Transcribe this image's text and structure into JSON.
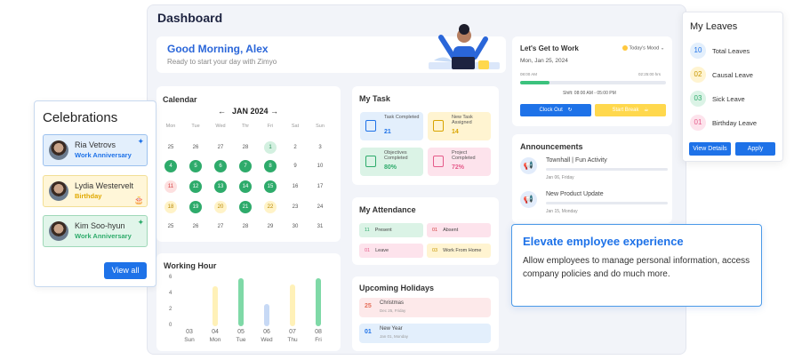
{
  "dashboard": {
    "title": "Dashboard"
  },
  "greeting": {
    "title": "Good Morning, Alex",
    "subtitle": "Ready to start your day with Zimyo"
  },
  "calendar": {
    "title": "Calendar",
    "month": "JAN 2024",
    "dow": [
      "Mon",
      "Tue",
      "Wed",
      "Thr",
      "Fri",
      "Sat",
      "Sun"
    ],
    "weeks": [
      [
        "25",
        "26",
        "27",
        "28",
        "1",
        "2",
        "3"
      ],
      [
        "4",
        "5",
        "6",
        "7",
        "8",
        "9",
        "10"
      ],
      [
        "11",
        "12",
        "13",
        "14",
        "15",
        "16",
        "17"
      ],
      [
        "18",
        "19",
        "20",
        "21",
        "22",
        "23",
        "24"
      ],
      [
        "25",
        "26",
        "27",
        "28",
        "29",
        "30",
        "31"
      ]
    ]
  },
  "task": {
    "title": "My Task",
    "items": [
      {
        "label": "Task Completed",
        "value": "21",
        "color": "#1e72e8"
      },
      {
        "label": "New Task Assigned",
        "value": "14",
        "color": "#d9a400"
      },
      {
        "label": "Objectives Completed",
        "value": "80%",
        "color": "#2eab6b"
      },
      {
        "label": "Project Completed",
        "value": "72%",
        "color": "#e55b8a"
      }
    ]
  },
  "attendance": {
    "title": "My Attendance",
    "items": [
      {
        "num": "11",
        "label": "Present"
      },
      {
        "num": "01",
        "label": "Absent"
      },
      {
        "num": "01",
        "label": "Leave"
      },
      {
        "num": "03",
        "label": "Work From Home"
      }
    ]
  },
  "holidays": {
    "title": "Upcoming Holidays",
    "items": [
      {
        "num": "25",
        "name": "Christmas",
        "date": "Dec 25, Friday"
      },
      {
        "num": "01",
        "name": "New Year",
        "date": "Jan 01, Monday"
      }
    ]
  },
  "working_hour": {
    "title": "Working Hour",
    "y_ticks": [
      "6",
      "4",
      "2",
      "0"
    ],
    "values": [
      "03",
      "04",
      "05",
      "06",
      "07",
      "08"
    ],
    "days": [
      "Sun",
      "Mon",
      "Tue",
      "Wed",
      "Thu",
      "Fri"
    ]
  },
  "chart_data": {
    "type": "bar",
    "title": "Working Hour",
    "categories": [
      "Sun",
      "Mon",
      "Tue",
      "Wed",
      "Thu",
      "Fri"
    ],
    "series": [
      {
        "values": [
          0,
          5,
          6,
          2.8,
          5.2,
          6
        ],
        "color_note": "yellow/green/blue alternating"
      }
    ],
    "ylim": [
      0,
      6
    ],
    "y_ticks": [
      0,
      2,
      4,
      6
    ],
    "grid": false
  },
  "work": {
    "title": "Let's Get to Work",
    "mood": "Today's Mood",
    "date": "Mon, Jan 25, 2024",
    "start": "08:00 AM",
    "elapsed": "02:25:00 hrs",
    "progress": 0.2,
    "shift": "Shift: 08:00 AM - 05:00 PM",
    "clock_out": "Clock Out",
    "start_break": "Start Break"
  },
  "announcements": {
    "title": "Announcements",
    "items": [
      {
        "title": "Townhall | Fun Activity",
        "date": "Jan 06, Friday"
      },
      {
        "title": "New Product Update",
        "date": "Jan 15, Monday"
      }
    ]
  },
  "elevate": {
    "title": "Elevate employee experience",
    "text": "Allow employees to manage personal information, access company policies and do much more."
  },
  "leaves": {
    "title": "My Leaves",
    "items": [
      {
        "num": "10",
        "label": "Total Leaves",
        "bg": "#e3effc",
        "fg": "#1e72e8"
      },
      {
        "num": "02",
        "label": "Causal Leave",
        "bg": "#fff4d1",
        "fg": "#c79600"
      },
      {
        "num": "03",
        "label": "Sick Leave",
        "bg": "#dbf3e6",
        "fg": "#2eab6b"
      },
      {
        "num": "01",
        "label": "Birthday Leave",
        "bg": "#fde3ec",
        "fg": "#e55b8a"
      }
    ],
    "view_details": "View Details",
    "apply": "Apply"
  },
  "celebrations": {
    "title": "Celebrations",
    "items": [
      {
        "name": "Ria Vetrovs",
        "type": "Work Anniversary",
        "bg": "#e3effc",
        "border": "#9cc1ee",
        "color": "#1e72e8"
      },
      {
        "name": "Lydia Westervelt",
        "type": "Birthday",
        "bg": "#fff6d8",
        "border": "#f2de95",
        "color": "#e0a800"
      },
      {
        "name": "Kim Soo-hyun",
        "type": "Work Anniversary",
        "bg": "#e1f5ea",
        "border": "#9fd8b8",
        "color": "#2eab6b"
      }
    ],
    "view_all": "View all"
  }
}
